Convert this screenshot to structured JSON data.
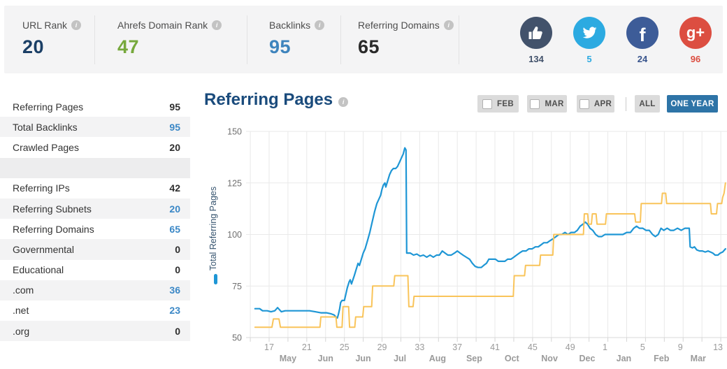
{
  "topbar": {
    "metrics": [
      {
        "label": "URL Rank",
        "value": "20",
        "color": "#1b3f66"
      },
      {
        "label": "Ahrefs Domain Rank",
        "value": "47",
        "color": "#76a83c"
      },
      {
        "label": "Backlinks",
        "value": "95",
        "color": "#3e84bd"
      },
      {
        "label": "Referring Domains",
        "value": "65",
        "color": "#2a2a2a"
      }
    ],
    "social": [
      {
        "network": "likes",
        "icon": "thumb-up-icon",
        "count": "134",
        "color": "#42526b",
        "count_color": "#42526b"
      },
      {
        "network": "twitter",
        "icon": "twitter-icon",
        "count": "5",
        "color": "#2caae1",
        "count_color": "#2caae1"
      },
      {
        "network": "facebook",
        "icon": "facebook-icon",
        "count": "24",
        "color": "#3d5c98",
        "count_color": "#37538c",
        "glyph": "f"
      },
      {
        "network": "googleplus",
        "icon": "googleplus-icon",
        "count": "96",
        "color": "#dc4e41",
        "count_color": "#dc4e41",
        "glyph": "g+"
      }
    ]
  },
  "sidebar": {
    "rows": [
      {
        "label": "Referring Pages",
        "value": "95",
        "value_blue": false
      },
      {
        "label": "Total Backlinks",
        "value": "95",
        "value_blue": true
      },
      {
        "label": "Crawled Pages",
        "value": "20",
        "value_blue": false
      },
      {
        "spacer": true
      },
      {
        "label": "Referring IPs",
        "value": "42",
        "value_blue": false
      },
      {
        "label": "Referring Subnets",
        "value": "20",
        "value_blue": true
      },
      {
        "label": "Referring Domains",
        "value": "65",
        "value_blue": true
      },
      {
        "label": "Governmental",
        "value": "0",
        "value_blue": false
      },
      {
        "label": "Educational",
        "value": "0",
        "value_blue": false
      },
      {
        "label": ".com",
        "value": "36",
        "value_blue": true
      },
      {
        "label": ".net",
        "value": "23",
        "value_blue": true
      },
      {
        "label": ".org",
        "value": "0",
        "value_blue": false
      }
    ]
  },
  "main": {
    "title": "Referring Pages",
    "controls": {
      "checkboxes": [
        {
          "label": "FEB"
        },
        {
          "label": "MAR"
        },
        {
          "label": "APR"
        }
      ],
      "all_label": "ALL",
      "one_year_label": "ONE YEAR",
      "active_range": "ONE YEAR"
    }
  },
  "chart_data": {
    "type": "line",
    "title": "Referring Pages",
    "ylabel": "Total Referring Pages",
    "x_unit": "week-of-year",
    "ylim": [
      50,
      150
    ],
    "y_ticks": [
      150,
      125,
      100,
      75,
      50
    ],
    "grid": true,
    "legend_position": "left-rotated",
    "x_ticks": [
      {
        "t": 17,
        "label": "17"
      },
      {
        "t": 21,
        "label": "21"
      },
      {
        "t": 25,
        "label": "25"
      },
      {
        "t": 29,
        "label": "29"
      },
      {
        "t": 33,
        "label": "33"
      },
      {
        "t": 37,
        "label": "37"
      },
      {
        "t": 41,
        "label": "41"
      },
      {
        "t": 45,
        "label": "45"
      },
      {
        "t": 49,
        "label": "49"
      },
      {
        "t": 52.7,
        "label": "1"
      },
      {
        "t": 56.7,
        "label": "5"
      },
      {
        "t": 60.7,
        "label": "9"
      },
      {
        "t": 64.7,
        "label": "13"
      }
    ],
    "month_labels": [
      {
        "t": 19,
        "label": "May"
      },
      {
        "t": 23,
        "label": "Jun"
      },
      {
        "t": 27,
        "label": "Jun"
      },
      {
        "t": 30.9,
        "label": "Jul"
      },
      {
        "t": 34.9,
        "label": "Aug"
      },
      {
        "t": 38.8,
        "label": "Sep"
      },
      {
        "t": 42.8,
        "label": "Oct"
      },
      {
        "t": 46.8,
        "label": "Nov"
      },
      {
        "t": 50.8,
        "label": "Dec"
      },
      {
        "t": 54.7,
        "label": "Jan"
      },
      {
        "t": 58.7,
        "label": "Feb"
      },
      {
        "t": 62.6,
        "label": "Mar"
      }
    ],
    "series": [
      {
        "name": "Total Referring Pages",
        "color": "#1e96d5",
        "points": [
          [
            15.5,
            64
          ],
          [
            16.0,
            64
          ],
          [
            16.3,
            63
          ],
          [
            16.8,
            63
          ],
          [
            17.2,
            62.5
          ],
          [
            17.6,
            63
          ],
          [
            17.9,
            64.5
          ],
          [
            18.1,
            63.5
          ],
          [
            18.3,
            62.5
          ],
          [
            18.7,
            63
          ],
          [
            19.3,
            63
          ],
          [
            20.0,
            63
          ],
          [
            20.7,
            63
          ],
          [
            21.3,
            63
          ],
          [
            21.9,
            62.5
          ],
          [
            22.5,
            62
          ],
          [
            23.1,
            62
          ],
          [
            23.6,
            61.5
          ],
          [
            23.9,
            61
          ],
          [
            24.1,
            60
          ],
          [
            24.25,
            59.5
          ],
          [
            24.35,
            61
          ],
          [
            24.5,
            64
          ],
          [
            24.6,
            67
          ],
          [
            24.75,
            68
          ],
          [
            25.0,
            68
          ],
          [
            25.15,
            71
          ],
          [
            25.3,
            74
          ],
          [
            25.5,
            77
          ],
          [
            25.62,
            78
          ],
          [
            25.75,
            76
          ],
          [
            25.9,
            78
          ],
          [
            26.05,
            80
          ],
          [
            26.25,
            83
          ],
          [
            26.45,
            86
          ],
          [
            26.6,
            85
          ],
          [
            26.8,
            88
          ],
          [
            27.0,
            91
          ],
          [
            27.2,
            93
          ],
          [
            27.45,
            97
          ],
          [
            27.7,
            101
          ],
          [
            27.95,
            106
          ],
          [
            28.2,
            111
          ],
          [
            28.45,
            115
          ],
          [
            28.65,
            117
          ],
          [
            28.85,
            119
          ],
          [
            29.0,
            122
          ],
          [
            29.15,
            124
          ],
          [
            29.3,
            125
          ],
          [
            29.4,
            123
          ],
          [
            29.6,
            126
          ],
          [
            29.8,
            129
          ],
          [
            30.0,
            131
          ],
          [
            30.2,
            132
          ],
          [
            30.45,
            132
          ],
          [
            30.65,
            133
          ],
          [
            30.85,
            135
          ],
          [
            31.05,
            137
          ],
          [
            31.25,
            139
          ],
          [
            31.42,
            142
          ],
          [
            31.55,
            141
          ],
          [
            31.62,
            91
          ],
          [
            32.0,
            91
          ],
          [
            32.35,
            90
          ],
          [
            32.7,
            90.5
          ],
          [
            33.05,
            89.5
          ],
          [
            33.4,
            90
          ],
          [
            33.75,
            89
          ],
          [
            34.1,
            90
          ],
          [
            34.45,
            89
          ],
          [
            34.8,
            90
          ],
          [
            35.1,
            90
          ],
          [
            35.4,
            92
          ],
          [
            35.7,
            91
          ],
          [
            36.0,
            90
          ],
          [
            36.35,
            90
          ],
          [
            36.7,
            91
          ],
          [
            37.0,
            92
          ],
          [
            37.3,
            91
          ],
          [
            37.6,
            90
          ],
          [
            37.95,
            89
          ],
          [
            38.3,
            88
          ],
          [
            38.6,
            86
          ],
          [
            38.9,
            84.5
          ],
          [
            39.2,
            84
          ],
          [
            39.55,
            84
          ],
          [
            39.8,
            85
          ],
          [
            40.1,
            86
          ],
          [
            40.35,
            88
          ],
          [
            40.7,
            88
          ],
          [
            41.05,
            88
          ],
          [
            41.35,
            87
          ],
          [
            41.7,
            87
          ],
          [
            42.05,
            87
          ],
          [
            42.35,
            88
          ],
          [
            42.7,
            88
          ],
          [
            43.0,
            89
          ],
          [
            43.3,
            90
          ],
          [
            43.6,
            91
          ],
          [
            43.95,
            92
          ],
          [
            44.3,
            92
          ],
          [
            44.6,
            93
          ],
          [
            44.95,
            93
          ],
          [
            45.3,
            94
          ],
          [
            45.6,
            94
          ],
          [
            45.9,
            95
          ],
          [
            46.2,
            96
          ],
          [
            46.55,
            96
          ],
          [
            46.85,
            97
          ],
          [
            47.2,
            98
          ],
          [
            47.5,
            99
          ],
          [
            47.8,
            100
          ],
          [
            48.1,
            100
          ],
          [
            48.45,
            101
          ],
          [
            48.75,
            100
          ],
          [
            49.1,
            101
          ],
          [
            49.45,
            101
          ],
          [
            49.75,
            102
          ],
          [
            50.05,
            104
          ],
          [
            50.35,
            105
          ],
          [
            50.6,
            106
          ],
          [
            50.85,
            105
          ],
          [
            51.1,
            103
          ],
          [
            51.4,
            102
          ],
          [
            51.7,
            100
          ],
          [
            52.0,
            99
          ],
          [
            52.35,
            99
          ],
          [
            52.7,
            100
          ],
          [
            53.1,
            100
          ],
          [
            53.6,
            100
          ],
          [
            54.1,
            100
          ],
          [
            54.6,
            100
          ],
          [
            55.0,
            101
          ],
          [
            55.4,
            101
          ],
          [
            55.75,
            103
          ],
          [
            56.05,
            104
          ],
          [
            56.35,
            103
          ],
          [
            56.7,
            103
          ],
          [
            57.05,
            102
          ],
          [
            57.4,
            102
          ],
          [
            57.75,
            100
          ],
          [
            58.05,
            99
          ],
          [
            58.35,
            100
          ],
          [
            58.65,
            103
          ],
          [
            58.95,
            102
          ],
          [
            59.3,
            103
          ],
          [
            59.65,
            102
          ],
          [
            60.0,
            102
          ],
          [
            60.4,
            103
          ],
          [
            60.8,
            102
          ],
          [
            61.2,
            103
          ],
          [
            61.65,
            103
          ],
          [
            61.75,
            94
          ],
          [
            62.0,
            93.5
          ],
          [
            62.2,
            94
          ],
          [
            62.45,
            92.5
          ],
          [
            62.75,
            92
          ],
          [
            63.05,
            92
          ],
          [
            63.35,
            91.5
          ],
          [
            63.65,
            92
          ],
          [
            63.9,
            91.5
          ],
          [
            64.15,
            91
          ],
          [
            64.4,
            90
          ],
          [
            64.7,
            90
          ],
          [
            64.95,
            91
          ],
          [
            65.2,
            91.5
          ],
          [
            65.5,
            93
          ]
        ]
      },
      {
        "name": "",
        "color": "#f9c45a",
        "points": [
          [
            15.5,
            55
          ],
          [
            17.3,
            55
          ],
          [
            17.45,
            59
          ],
          [
            18.05,
            59
          ],
          [
            18.2,
            55
          ],
          [
            19.5,
            55
          ],
          [
            21.0,
            55
          ],
          [
            22.4,
            55
          ],
          [
            22.5,
            60
          ],
          [
            24.1,
            60
          ],
          [
            24.2,
            55
          ],
          [
            24.75,
            55
          ],
          [
            24.85,
            65
          ],
          [
            25.45,
            65
          ],
          [
            25.55,
            55
          ],
          [
            26.1,
            55
          ],
          [
            26.2,
            60
          ],
          [
            26.95,
            60
          ],
          [
            27.05,
            65
          ],
          [
            27.9,
            65
          ],
          [
            28.0,
            75
          ],
          [
            30.25,
            75
          ],
          [
            30.35,
            80
          ],
          [
            31.75,
            80
          ],
          [
            31.85,
            65
          ],
          [
            32.3,
            65
          ],
          [
            32.4,
            70
          ],
          [
            42.95,
            70
          ],
          [
            43.05,
            80
          ],
          [
            44.15,
            80
          ],
          [
            44.25,
            85
          ],
          [
            45.75,
            85
          ],
          [
            45.85,
            90
          ],
          [
            47.15,
            90
          ],
          [
            47.25,
            100
          ],
          [
            50.4,
            100
          ],
          [
            50.5,
            110
          ],
          [
            50.85,
            110
          ],
          [
            50.95,
            105
          ],
          [
            51.25,
            105
          ],
          [
            51.35,
            110
          ],
          [
            51.75,
            110
          ],
          [
            51.85,
            105
          ],
          [
            52.75,
            105
          ],
          [
            52.85,
            110
          ],
          [
            55.85,
            110
          ],
          [
            55.95,
            106
          ],
          [
            56.45,
            106
          ],
          [
            56.55,
            115
          ],
          [
            58.7,
            115
          ],
          [
            58.8,
            120
          ],
          [
            59.15,
            120
          ],
          [
            59.25,
            115
          ],
          [
            63.9,
            115
          ],
          [
            64.0,
            110
          ],
          [
            64.55,
            110
          ],
          [
            64.65,
            115
          ],
          [
            65.1,
            115
          ],
          [
            65.2,
            118
          ],
          [
            65.35,
            120
          ],
          [
            65.5,
            125
          ]
        ]
      }
    ]
  }
}
